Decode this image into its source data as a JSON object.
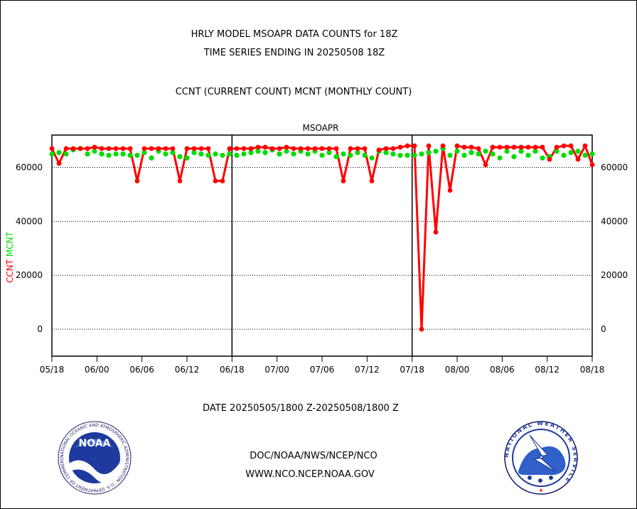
{
  "header": {
    "line1": "HRLY MODEL MSOAPR DATA COUNTS for 18Z",
    "line2": "TIME SERIES ENDING IN 20250508 18Z",
    "line3": "CCNT (CURRENT COUNT) MCNT (MONTHLY COUNT)"
  },
  "footer": {
    "date_range": "DATE 20250505/1800 Z-20250508/1800 Z",
    "org_path": "DOC/NOAA/NWS/NCEP/NCO",
    "website": "WWW.NCO.NCEP.NOAA.GOV"
  },
  "logos": {
    "noaa_text": "NOAA",
    "noaa_ring_text": "NATIONAL OCEANIC AND ATMOSPHERIC ADMINISTRATION · U.S. DEPARTMENT OF COMMERCE ·",
    "nws_ring_text": "NATIONAL WEATHER SERVICE"
  },
  "colors": {
    "ccnt": "#ff0000",
    "mcnt": "#00dd00",
    "title": "#0000cc",
    "date": "#ff0000",
    "footer": "#0000cc"
  },
  "chart_data": {
    "type": "line",
    "title": "MSOAPR",
    "ylabel_left": "CCNT",
    "ylabel_right": "MCNT",
    "x_tick_labels": [
      "05/18",
      "06/00",
      "06/06",
      "06/12",
      "06/18",
      "07/00",
      "07/06",
      "07/12",
      "07/18",
      "08/00",
      "08/06",
      "08/12",
      "08/18"
    ],
    "y_ticks": [
      0,
      20000,
      40000,
      60000
    ],
    "y_tick_labels": [
      "0",
      "20000",
      "40000",
      "60000"
    ],
    "ylim": [
      -10000,
      72000
    ],
    "grid": "horizontal dotted",
    "day_separators": [
      "06/18",
      "07/18"
    ],
    "series": [
      {
        "name": "CCNT",
        "values": [
          67000,
          61500,
          67000,
          67000,
          67000,
          67000,
          67500,
          67000,
          67000,
          67000,
          67000,
          67000,
          55000,
          67000,
          67000,
          67000,
          67000,
          67000,
          55000,
          67000,
          67000,
          67000,
          67000,
          55000,
          55000,
          67000,
          67000,
          67000,
          67000,
          67500,
          67500,
          67000,
          67000,
          67500,
          67000,
          67000,
          67000,
          67000,
          67000,
          67000,
          67000,
          55000,
          67000,
          67000,
          67000,
          55000,
          66500,
          67000,
          67000,
          67500,
          68000,
          68000,
          0,
          68000,
          36000,
          68000,
          51500,
          68000,
          67500,
          67500,
          67000,
          61000,
          67500,
          67500,
          67500,
          67500,
          67500,
          67500,
          67500,
          67500,
          63000,
          67500,
          68000,
          68000,
          63000,
          68000,
          61000
        ]
      },
      {
        "name": "MCNT",
        "values": [
          65000,
          65500,
          65000,
          66500,
          67000,
          65000,
          66000,
          65000,
          64500,
          65000,
          65000,
          64500,
          64500,
          65500,
          63500,
          66000,
          65000,
          65500,
          64000,
          63500,
          65500,
          65000,
          64500,
          65000,
          64500,
          65000,
          64500,
          65000,
          65500,
          66000,
          65500,
          66500,
          65000,
          66000,
          65000,
          66000,
          65000,
          66000,
          64500,
          65500,
          64000,
          65000,
          64500,
          65500,
          64500,
          63500,
          66000,
          65500,
          65000,
          64500,
          64500,
          64500,
          65000,
          65500,
          66000,
          67000,
          64500,
          66000,
          64500,
          65500,
          65000,
          66000,
          65000,
          63500,
          66000,
          64000,
          66000,
          64500,
          66000,
          63500,
          64000,
          66000,
          64500,
          65500,
          66000,
          64500,
          65000
        ]
      }
    ]
  }
}
